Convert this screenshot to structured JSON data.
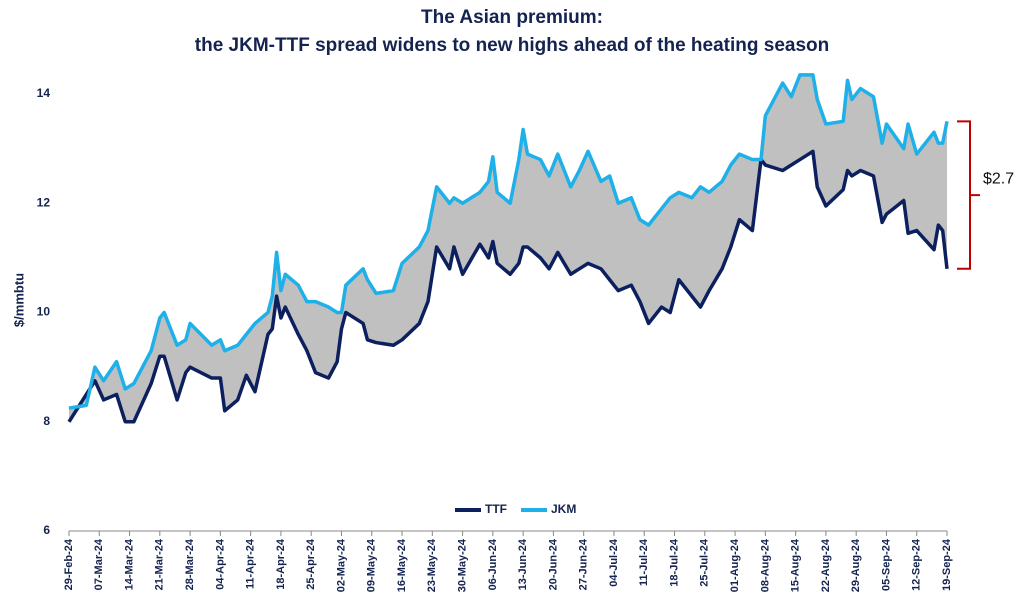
{
  "chart_data": {
    "type": "line",
    "title": "The Asian premium:",
    "subtitle": "the JKM-TTF spread widens to new highs ahead of the heating season",
    "ylabel": "$/mmbtu",
    "annotation": "$2.7",
    "fill_between": true,
    "fill_color": "#c0c0c0",
    "bracket_color": "#c00000",
    "legend": "bottom",
    "x": [
      "2024-02-29",
      "2024-03-04",
      "2024-03-06",
      "2024-03-08",
      "2024-03-11",
      "2024-03-13",
      "2024-03-15",
      "2024-03-19",
      "2024-03-21",
      "2024-03-22",
      "2024-03-25",
      "2024-03-27",
      "2024-03-28",
      "2024-04-02",
      "2024-04-04",
      "2024-04-05",
      "2024-04-08",
      "2024-04-10",
      "2024-04-12",
      "2024-04-15",
      "2024-04-16",
      "2024-04-17",
      "2024-04-18",
      "2024-04-19",
      "2024-04-22",
      "2024-04-24",
      "2024-04-26",
      "2024-04-29",
      "2024-05-01",
      "2024-05-02",
      "2024-05-03",
      "2024-05-07",
      "2024-05-08",
      "2024-05-10",
      "2024-05-14",
      "2024-05-16",
      "2024-05-20",
      "2024-05-22",
      "2024-05-24",
      "2024-05-27",
      "2024-05-28",
      "2024-05-30",
      "2024-06-03",
      "2024-06-05",
      "2024-06-06",
      "2024-06-07",
      "2024-06-10",
      "2024-06-12",
      "2024-06-13",
      "2024-06-14",
      "2024-06-17",
      "2024-06-19",
      "2024-06-21",
      "2024-06-24",
      "2024-06-26",
      "2024-06-28",
      "2024-07-01",
      "2024-07-03",
      "2024-07-05",
      "2024-07-08",
      "2024-07-10",
      "2024-07-12",
      "2024-07-15",
      "2024-07-17",
      "2024-07-19",
      "2024-07-22",
      "2024-07-24",
      "2024-07-26",
      "2024-07-29",
      "2024-07-31",
      "2024-08-02",
      "2024-08-05",
      "2024-08-07",
      "2024-08-08",
      "2024-08-12",
      "2024-08-14",
      "2024-08-16",
      "2024-08-19",
      "2024-08-20",
      "2024-08-22",
      "2024-08-26",
      "2024-08-27",
      "2024-08-28",
      "2024-08-30",
      "2024-09-02",
      "2024-09-04",
      "2024-09-05",
      "2024-09-09",
      "2024-09-10",
      "2024-09-12",
      "2024-09-16",
      "2024-09-17",
      "2024-09-18",
      "2024-09-19"
    ],
    "series": [
      {
        "name": "TTF",
        "color": "#0c1f5e",
        "values": [
          8.0,
          8.5,
          8.75,
          8.4,
          8.5,
          8.0,
          8.0,
          8.7,
          9.2,
          9.2,
          8.4,
          8.9,
          9.0,
          8.8,
          8.8,
          8.2,
          8.4,
          8.85,
          8.55,
          9.6,
          9.7,
          10.3,
          9.9,
          10.1,
          9.6,
          9.3,
          8.9,
          8.8,
          9.1,
          9.7,
          10.0,
          9.8,
          9.5,
          9.45,
          9.4,
          9.5,
          9.8,
          10.2,
          11.2,
          10.8,
          11.2,
          10.7,
          11.25,
          11.0,
          11.3,
          10.9,
          10.7,
          10.9,
          11.2,
          11.2,
          11.0,
          10.8,
          11.1,
          10.7,
          10.8,
          10.9,
          10.8,
          10.6,
          10.4,
          10.5,
          10.2,
          9.8,
          10.1,
          10.0,
          10.6,
          10.3,
          10.1,
          10.4,
          10.8,
          11.2,
          11.7,
          11.5,
          12.8,
          12.7,
          12.6,
          12.7,
          12.8,
          12.95,
          12.3,
          11.95,
          12.25,
          12.6,
          12.5,
          12.6,
          12.5,
          11.65,
          11.8,
          12.05,
          11.45,
          11.5,
          11.15,
          11.6,
          11.5,
          10.8
        ]
      },
      {
        "name": "JKM",
        "color": "#1eb0e8",
        "values": [
          8.25,
          8.3,
          9.0,
          8.75,
          9.1,
          8.6,
          8.7,
          9.3,
          9.9,
          10.0,
          9.4,
          9.5,
          9.8,
          9.4,
          9.5,
          9.3,
          9.4,
          9.6,
          9.8,
          10.0,
          10.3,
          11.1,
          10.4,
          10.7,
          10.5,
          10.2,
          10.2,
          10.1,
          10.0,
          10.0,
          10.5,
          10.8,
          10.6,
          10.35,
          10.4,
          10.9,
          11.2,
          11.5,
          12.3,
          12.0,
          12.1,
          12.0,
          12.2,
          12.4,
          12.85,
          12.2,
          12.0,
          12.8,
          13.35,
          12.9,
          12.8,
          12.5,
          12.9,
          12.3,
          12.6,
          12.95,
          12.4,
          12.5,
          12.0,
          12.1,
          11.7,
          11.6,
          11.9,
          12.1,
          12.2,
          12.1,
          12.3,
          12.2,
          12.4,
          12.7,
          12.9,
          12.8,
          12.8,
          13.6,
          14.2,
          13.95,
          14.35,
          14.35,
          13.9,
          13.45,
          13.5,
          14.25,
          13.9,
          14.1,
          13.95,
          13.1,
          13.45,
          13.0,
          13.45,
          12.9,
          13.3,
          13.1,
          13.1,
          13.5
        ]
      }
    ],
    "xlim": [
      "2024-02-29",
      "2024-09-19"
    ],
    "xticks": [
      {
        "value": "2024-02-29",
        "label": "29-Feb-24"
      },
      {
        "value": "2024-03-07",
        "label": "07-Mar-24"
      },
      {
        "value": "2024-03-14",
        "label": "14-Mar-24"
      },
      {
        "value": "2024-03-21",
        "label": "21-Mar-24"
      },
      {
        "value": "2024-03-28",
        "label": "28-Mar-24"
      },
      {
        "value": "2024-04-04",
        "label": "04-Apr-24"
      },
      {
        "value": "2024-04-11",
        "label": "11-Apr-24"
      },
      {
        "value": "2024-04-18",
        "label": "18-Apr-24"
      },
      {
        "value": "2024-04-25",
        "label": "25-Apr-24"
      },
      {
        "value": "2024-05-02",
        "label": "02-May-24"
      },
      {
        "value": "2024-05-09",
        "label": "09-May-24"
      },
      {
        "value": "2024-05-16",
        "label": "16-May-24"
      },
      {
        "value": "2024-05-23",
        "label": "23-May-24"
      },
      {
        "value": "2024-05-30",
        "label": "30-May-24"
      },
      {
        "value": "2024-06-06",
        "label": "06-Jun-24"
      },
      {
        "value": "2024-06-13",
        "label": "13-Jun-24"
      },
      {
        "value": "2024-06-20",
        "label": "20-Jun-24"
      },
      {
        "value": "2024-06-27",
        "label": "27-Jun-24"
      },
      {
        "value": "2024-07-04",
        "label": "04-Jul-24"
      },
      {
        "value": "2024-07-11",
        "label": "11-Jul-24"
      },
      {
        "value": "2024-07-18",
        "label": "18-Jul-24"
      },
      {
        "value": "2024-07-25",
        "label": "25-Jul-24"
      },
      {
        "value": "2024-08-01",
        "label": "01-Aug-24"
      },
      {
        "value": "2024-08-08",
        "label": "08-Aug-24"
      },
      {
        "value": "2024-08-15",
        "label": "15-Aug-24"
      },
      {
        "value": "2024-08-22",
        "label": "22-Aug-24"
      },
      {
        "value": "2024-08-29",
        "label": "29-Aug-24"
      },
      {
        "value": "2024-09-05",
        "label": "05-Sep-24"
      },
      {
        "value": "2024-09-12",
        "label": "12-Sep-24"
      },
      {
        "value": "2024-09-19",
        "label": "19-Sep-24"
      }
    ],
    "ylim": [
      6,
      14.5
    ],
    "yticks": [
      6,
      8,
      10,
      12,
      14
    ]
  }
}
